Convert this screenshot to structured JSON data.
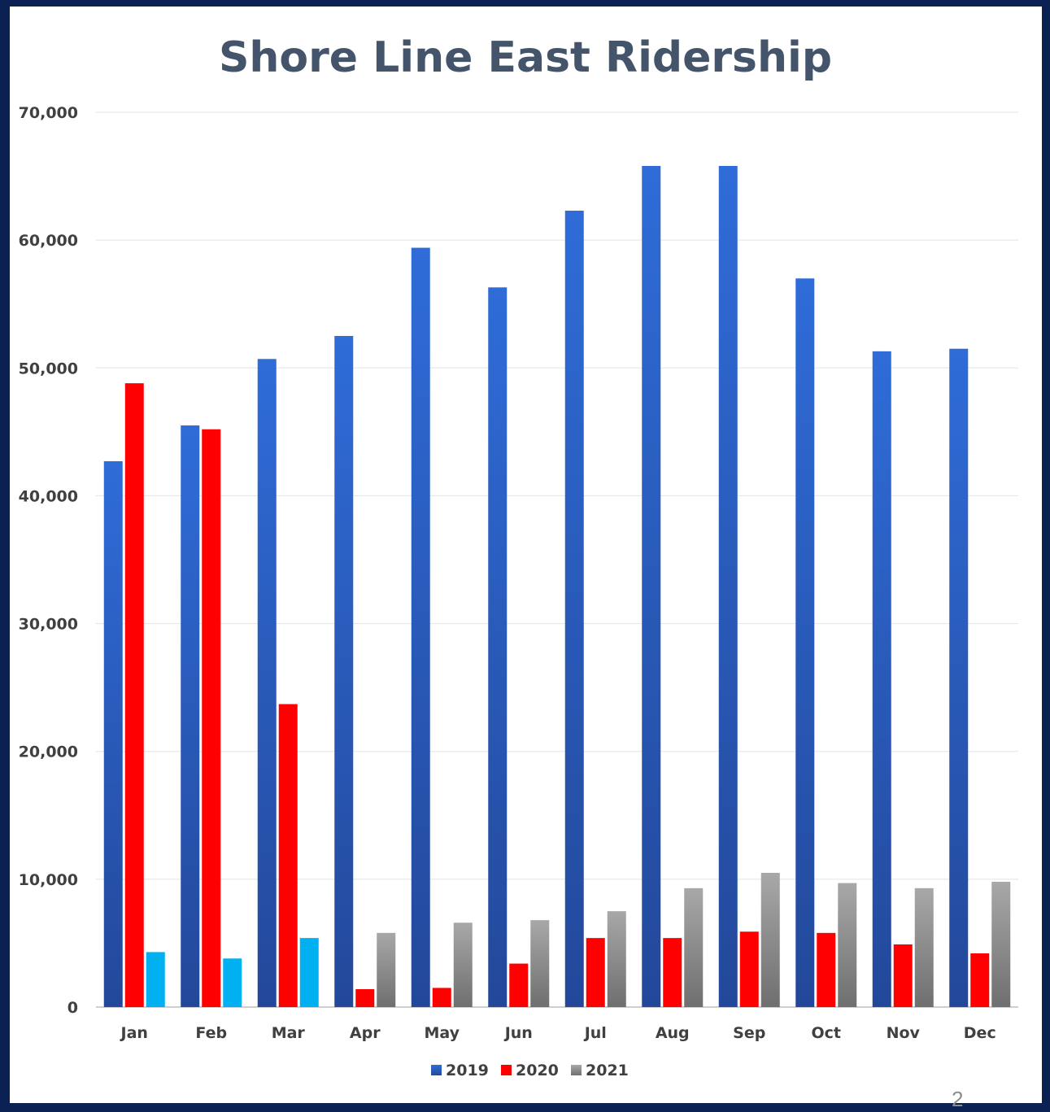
{
  "slide": {
    "page_number": "2"
  },
  "chart_data": {
    "type": "bar",
    "title": "Shore Line East Ridership",
    "xlabel": "",
    "ylabel": "",
    "ylim": [
      0,
      70000
    ],
    "yticks": [
      0,
      10000,
      20000,
      30000,
      40000,
      50000,
      60000,
      70000
    ],
    "ytick_labels": [
      "0",
      "10,000",
      "20,000",
      "30,000",
      "40,000",
      "50,000",
      "60,000",
      "70,000"
    ],
    "grid": true,
    "legend_position": "bottom",
    "categories": [
      "Jan",
      "Feb",
      "Mar",
      "Apr",
      "May",
      "Jun",
      "Jul",
      "Aug",
      "Sep",
      "Oct",
      "Nov",
      "Dec"
    ],
    "series": [
      {
        "name": "2019",
        "color": "#2f6ad6",
        "values": [
          42700,
          45500,
          50700,
          52500,
          59400,
          56300,
          62300,
          65800,
          65800,
          57000,
          51300,
          51500
        ]
      },
      {
        "name": "2020",
        "color": "#ff0000",
        "values": [
          48800,
          45200,
          23700,
          1400,
          1500,
          3400,
          5400,
          5400,
          5900,
          5800,
          4900,
          4200
        ]
      },
      {
        "name": "2021",
        "color": "#9e9e9e",
        "values": [
          4300,
          3800,
          5400,
          5800,
          6600,
          6800,
          7500,
          9300,
          10500,
          9700,
          9300,
          9800
        ]
      }
    ],
    "highlight_color_2021_jan_mar": "#00b0f0"
  }
}
